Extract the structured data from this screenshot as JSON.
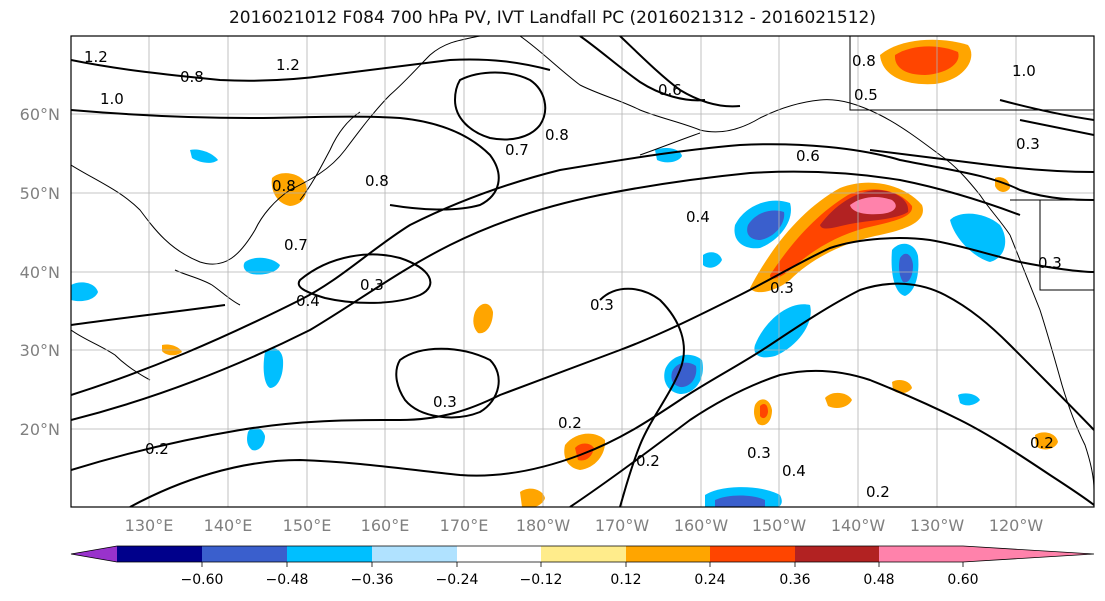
{
  "title": "2016021012 F084 700 hPa PV, IVT Landfall PC (2016021312 - 2016021512)",
  "axes": {
    "lat_labels": [
      "60°N",
      "50°N",
      "40°N",
      "30°N",
      "20°N"
    ],
    "lon_labels": [
      "130°E",
      "140°E",
      "150°E",
      "160°E",
      "170°E",
      "180°W",
      "170°W",
      "160°W",
      "150°W",
      "140°W",
      "130°W",
      "120°W"
    ]
  },
  "contour_labels": [
    "1.2",
    "0.8",
    "1.0",
    "0.7",
    "0.8",
    "0.8",
    "0.6",
    "0.4",
    "0.3",
    "0.3",
    "0.4",
    "0.3",
    "0.3",
    "0.3",
    "0.2",
    "0.2",
    "0.2",
    "0.3",
    "0.4",
    "0.2",
    "0.2",
    "0.5",
    "0.8",
    "1.0",
    "0.3",
    "0.6",
    "1.2",
    "0.7",
    "0.8"
  ],
  "colorbar": {
    "tick_labels": [
      "−0.60",
      "−0.48",
      "−0.36",
      "−0.24",
      "−0.12",
      "0.12",
      "0.24",
      "0.36",
      "0.48",
      "0.60"
    ],
    "colors": [
      "#9932cc",
      "#00008b",
      "#3a5fcd",
      "#00bfff",
      "#b0e2ff",
      "#ffffff",
      "#ffec8b",
      "#ffa500",
      "#ff4500",
      "#b22222",
      "#ff82ab"
    ]
  }
}
